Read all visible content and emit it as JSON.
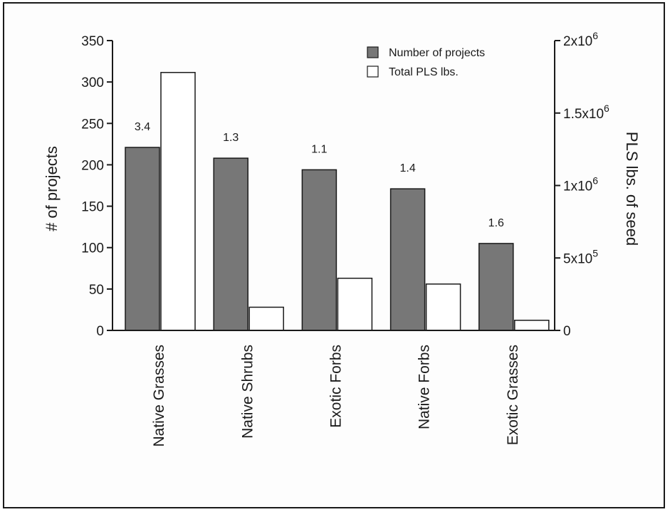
{
  "chart_data": {
    "type": "bar",
    "categories": [
      "Native Grasses",
      "Native Shrubs",
      "Exotic Forbs",
      "Native Forbs",
      "Exotic Grasses"
    ],
    "series": [
      {
        "name": "Number of projects",
        "axis": "left",
        "color": "#777777",
        "values": [
          221,
          208,
          194,
          171,
          105
        ]
      },
      {
        "name": "Total PLS lbs.",
        "axis": "right",
        "color": "#ffffff",
        "values": [
          1780000,
          160000,
          360000,
          320000,
          70000
        ]
      }
    ],
    "bar_labels": [
      "3.4",
      "1.3",
      "1.1",
      "1.4",
      "1.6"
    ],
    "ylabel": "# of projects",
    "ylim": [
      0,
      350
    ],
    "yticks": [
      "0",
      "50",
      "100",
      "150",
      "200",
      "250",
      "300",
      "350"
    ],
    "y2label": "PLS lbs. of seed",
    "y2lim": [
      0,
      2000000
    ],
    "y2ticks": [
      {
        "value": 0,
        "base": "0",
        "exp": ""
      },
      {
        "value": 500000,
        "base": "5x10",
        "exp": "5"
      },
      {
        "value": 1000000,
        "base": "1x10",
        "exp": "6"
      },
      {
        "value": 1500000,
        "base": "1.5x10",
        "exp": "6"
      },
      {
        "value": 2000000,
        "base": "2x10",
        "exp": "6"
      }
    ],
    "grid": false,
    "legend_position": "top-right"
  }
}
